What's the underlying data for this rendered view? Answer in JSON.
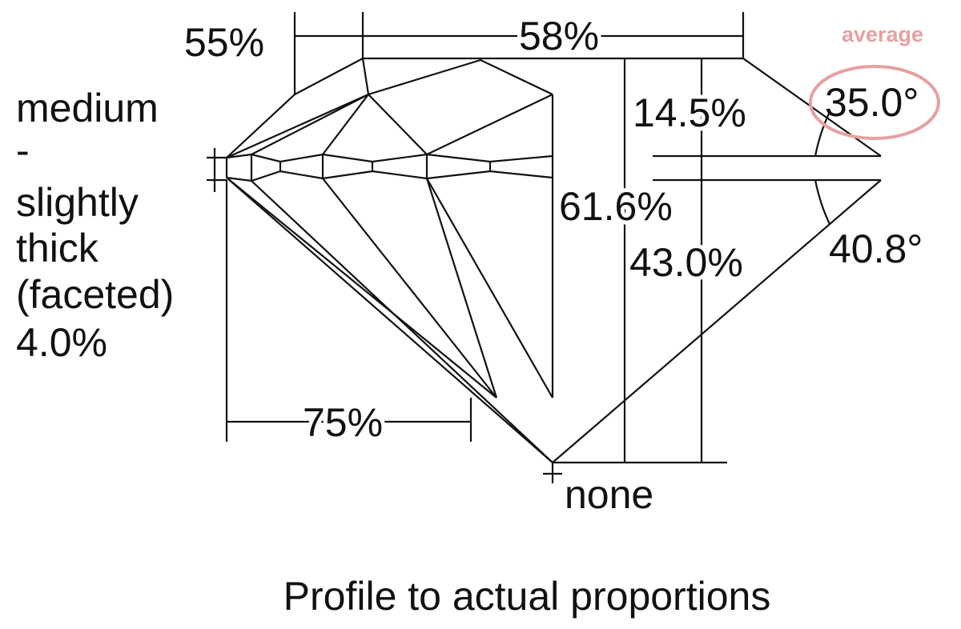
{
  "labels": {
    "crown_height_left": "55%",
    "table": "58%",
    "grade": "average",
    "crown_angle": "35.0°",
    "crown_height": "14.5%",
    "girdle": [
      "medium",
      "-",
      "slightly",
      "thick",
      "(faceted)",
      "4.0%"
    ],
    "total_depth": "61.6%",
    "pavilion_depth": "43.0%",
    "pavilion_angle": "40.8°",
    "lower_half": "75%",
    "culet": "none"
  },
  "caption": "Profile to actual proportions"
}
